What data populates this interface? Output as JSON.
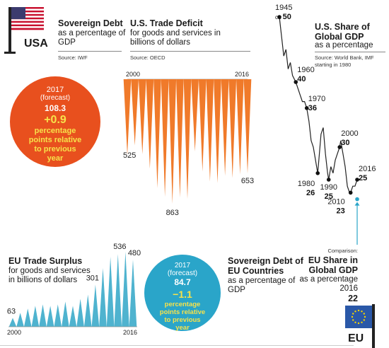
{
  "usa": {
    "label": "USA",
    "colors": {
      "red": "#c8102e",
      "blue": "#3c3b6e",
      "white": "#ffffff"
    }
  },
  "eu": {
    "label": "EU",
    "colors": {
      "blue": "#2a58a8",
      "star": "#f6d400"
    }
  },
  "debt_us": {
    "title": "Sovereign Debt",
    "subtitle": "as a percentage of GDP",
    "source": "Source: IWF",
    "year": "2017",
    "forecast": "(forecast)",
    "value": "108.3",
    "change": "+0.9",
    "change_note": "percentage points relative to previous year",
    "color": "#e8501e",
    "accent": "#f7e24a"
  },
  "trade_us": {
    "title": "U.S. Trade Deficit",
    "subtitle": "for goods and services in billions of dollars",
    "source": "Source: OECD",
    "start_label": "2000",
    "end_label": "2016",
    "labels": {
      "first": "525",
      "min": "863",
      "last": "653"
    },
    "color": "#f07a2a"
  },
  "gdp_share": {
    "title": "U.S. Share of Global GDP",
    "subtitle": "as a percentage",
    "source": "Source: World Bank, IMF starting in 1980",
    "annotations": [
      {
        "year": "1945",
        "prefix": "ca",
        "value": "50"
      },
      {
        "year": "1960",
        "value": "40"
      },
      {
        "year": "1970",
        "value": "36"
      },
      {
        "year": "1980",
        "value": "26"
      },
      {
        "year": "1990",
        "value": "25"
      },
      {
        "year": "2000",
        "value": "30"
      },
      {
        "year": "2010",
        "value": "23"
      },
      {
        "year": "2016",
        "value": "25"
      }
    ],
    "comparison": {
      "label": "Comparison:",
      "title": "EU Share in Global GDP",
      "subtitle": "as a percentage",
      "year": "2016",
      "value": "22",
      "color": "#2aa5c9"
    }
  },
  "trade_eu": {
    "title": "EU Trade Surplus",
    "subtitle": "for goods and services in billions of dollars",
    "start_label": "2000",
    "end_label": "2016",
    "labels": {
      "first": "63",
      "mid": "301",
      "max": "536",
      "last": "480"
    },
    "color": "#4fb3cf"
  },
  "debt_eu": {
    "title": "Sovereign Debt of EU Countries",
    "subtitle": "as a percentage of GDP",
    "year": "2017",
    "forecast": "(forecast)",
    "value": "84.7",
    "change": "−1.1",
    "change_note": "percentage points relative to previous year",
    "color": "#2aa5c9",
    "accent": "#f7e24a"
  },
  "chart_data": [
    {
      "type": "area",
      "name": "U.S. Trade Deficit",
      "x": [
        2000,
        2001,
        2002,
        2003,
        2004,
        2005,
        2006,
        2007,
        2008,
        2009,
        2010,
        2011,
        2012,
        2013,
        2014,
        2015,
        2016
      ],
      "values": [
        525,
        460,
        520,
        620,
        755,
        815,
        863,
        820,
        830,
        500,
        640,
        710,
        720,
        670,
        685,
        660,
        653
      ],
      "annotated": {
        "2000": 525,
        "2006": 863,
        "2016": 653
      }
    },
    {
      "type": "area",
      "name": "EU Trade Surplus",
      "x": [
        2000,
        2001,
        2002,
        2003,
        2004,
        2005,
        2006,
        2007,
        2008,
        2009,
        2010,
        2011,
        2012,
        2013,
        2014,
        2015,
        2016
      ],
      "values": [
        63,
        100,
        130,
        150,
        160,
        150,
        160,
        180,
        150,
        200,
        230,
        301,
        420,
        500,
        520,
        536,
        480
      ],
      "annotated": {
        "2000": 63,
        "2011": 301,
        "2015": 536,
        "2016": 480
      }
    },
    {
      "type": "line",
      "name": "U.S. Share of Global GDP",
      "x": [
        1945,
        1950,
        1955,
        1960,
        1965,
        1970,
        1975,
        1980,
        1985,
        1990,
        1995,
        2000,
        2005,
        2010,
        2016
      ],
      "values": [
        50,
        46,
        43,
        40,
        38,
        36,
        30,
        26,
        32,
        25,
        27,
        30,
        27,
        23,
        25
      ],
      "annotated": {
        "1945": 50,
        "1960": 40,
        "1970": 36,
        "1980": 26,
        "1990": 25,
        "2000": 30,
        "2010": 23,
        "2016": 25
      }
    }
  ]
}
